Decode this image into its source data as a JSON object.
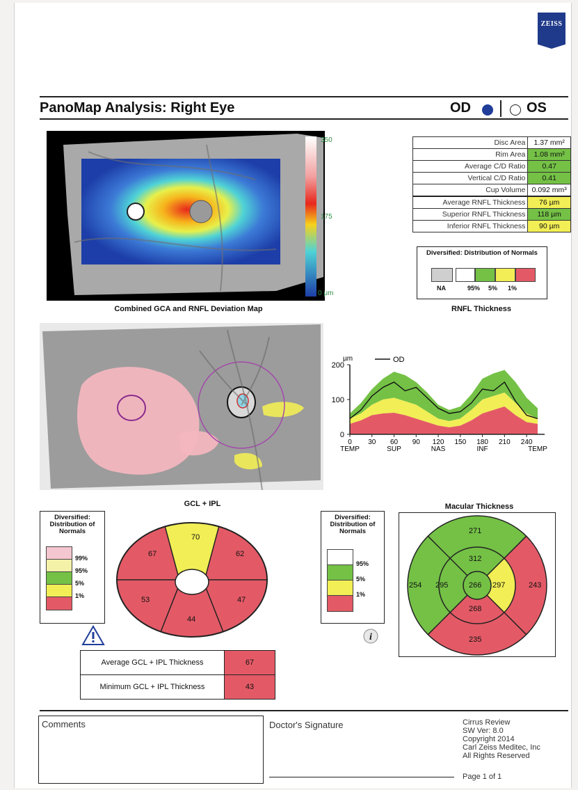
{
  "brand": "ZEISS",
  "header": {
    "title": "PanoMap Analysis: Right Eye",
    "od": "OD",
    "os": "OS"
  },
  "deviation_map": {
    "caption": "Combined GCA and RNFL Deviation Map",
    "scale_top": "350",
    "scale_mid": "175",
    "scale_bottom": "0 μm"
  },
  "parameters": [
    {
      "label": "Disc Area",
      "value": "1.37 mm²",
      "status": "normal"
    },
    {
      "label": "Rim Area",
      "value": "1.08 mm²",
      "status": "green"
    },
    {
      "label": "Average C/D Ratio",
      "value": "0.47",
      "status": "green"
    },
    {
      "label": "Vertical C/D Ratio",
      "value": "0.41",
      "status": "green"
    },
    {
      "label": "Cup Volume",
      "value": "0.092 mm³",
      "status": "normal"
    },
    {
      "label": "Average RNFL Thickness",
      "value": "76 µm",
      "status": "yellow"
    },
    {
      "label": "Superior RNFL Thickness",
      "value": "118 µm",
      "status": "green"
    },
    {
      "label": "Inferior RNFL Thickness",
      "value": "90 µm",
      "status": "yellow"
    }
  ],
  "rnfl_legend": {
    "title": "Diversified: Distribution of Normals",
    "labels": [
      "NA",
      "95%",
      "5%",
      "1%"
    ],
    "caption": "RNFL Thickness",
    "colors": [
      "#cfcfcf",
      "#ffffff",
      "#74c146",
      "#f2ee55",
      "#e35a66"
    ]
  },
  "chart_data": {
    "type": "line",
    "legend": "OD",
    "ylabel": "µm",
    "ylim": [
      0,
      250
    ],
    "yticks": [
      "0",
      "100",
      "200"
    ],
    "xticks": [
      "0",
      "30",
      "60",
      "90",
      "120",
      "150",
      "180",
      "210",
      "240"
    ],
    "xlabels": [
      "TEMP",
      "SUP",
      "NAS",
      "INF",
      "TEMP"
    ],
    "x": [
      0,
      15,
      30,
      45,
      60,
      75,
      90,
      105,
      120,
      135,
      150,
      165,
      180,
      195,
      210,
      225,
      240,
      255
    ],
    "od": [
      45,
      70,
      110,
      135,
      150,
      125,
      135,
      105,
      75,
      60,
      65,
      90,
      130,
      125,
      150,
      95,
      55,
      45
    ],
    "band_red_top": [
      30,
      40,
      55,
      60,
      62,
      55,
      45,
      35,
      25,
      20,
      25,
      40,
      60,
      70,
      80,
      55,
      35,
      30
    ],
    "band_yellow_top": [
      45,
      60,
      85,
      100,
      105,
      95,
      85,
      65,
      45,
      38,
      45,
      70,
      100,
      110,
      120,
      90,
      60,
      45
    ],
    "band_green_top": [
      60,
      90,
      130,
      160,
      180,
      170,
      150,
      120,
      85,
      70,
      80,
      115,
      160,
      175,
      185,
      150,
      105,
      75
    ]
  },
  "gcl": {
    "title": "GCL + IPL",
    "values": {
      "superior": "70",
      "superotemporal": "67",
      "superonasal": "62",
      "inferotemporal": "53",
      "inferior": "44",
      "inferonasal": "47"
    },
    "legend_title": "Diversified: Distribution of Normals",
    "legend_labels": [
      "99%",
      "95%",
      "5%",
      "1%"
    ],
    "legend_colors": [
      "#f4c6cf",
      "#f4f2a8",
      "#74c146",
      "#f2ee55",
      "#e35a66"
    ]
  },
  "gcl_stats": [
    {
      "label": "Average GCL + IPL Thickness",
      "value": "67"
    },
    {
      "label": "Minimum GCL + IPL Thickness",
      "value": "43"
    }
  ],
  "macular": {
    "title": "Macular Thickness",
    "legend_title": "Diversified: Distribution of Normals",
    "legend_labels": [
      "95%",
      "5%",
      "1%"
    ],
    "values": {
      "outer_superior": "271",
      "inner_superior": "312",
      "outer_temporal": "254",
      "inner_temporal": "295",
      "center": "266",
      "inner_nasal": "297",
      "outer_nasal": "243",
      "inner_inferior": "268",
      "outer_inferior": "235"
    }
  },
  "footer": {
    "comments": "Comments",
    "signature": "Doctor's Signature",
    "info": [
      "Cirrus Review",
      "SW Ver: 8.0",
      "Copyright 2014",
      "Carl Zeiss Meditec, Inc",
      "All Rights Reserved"
    ],
    "page": "Page 1 of 1"
  }
}
